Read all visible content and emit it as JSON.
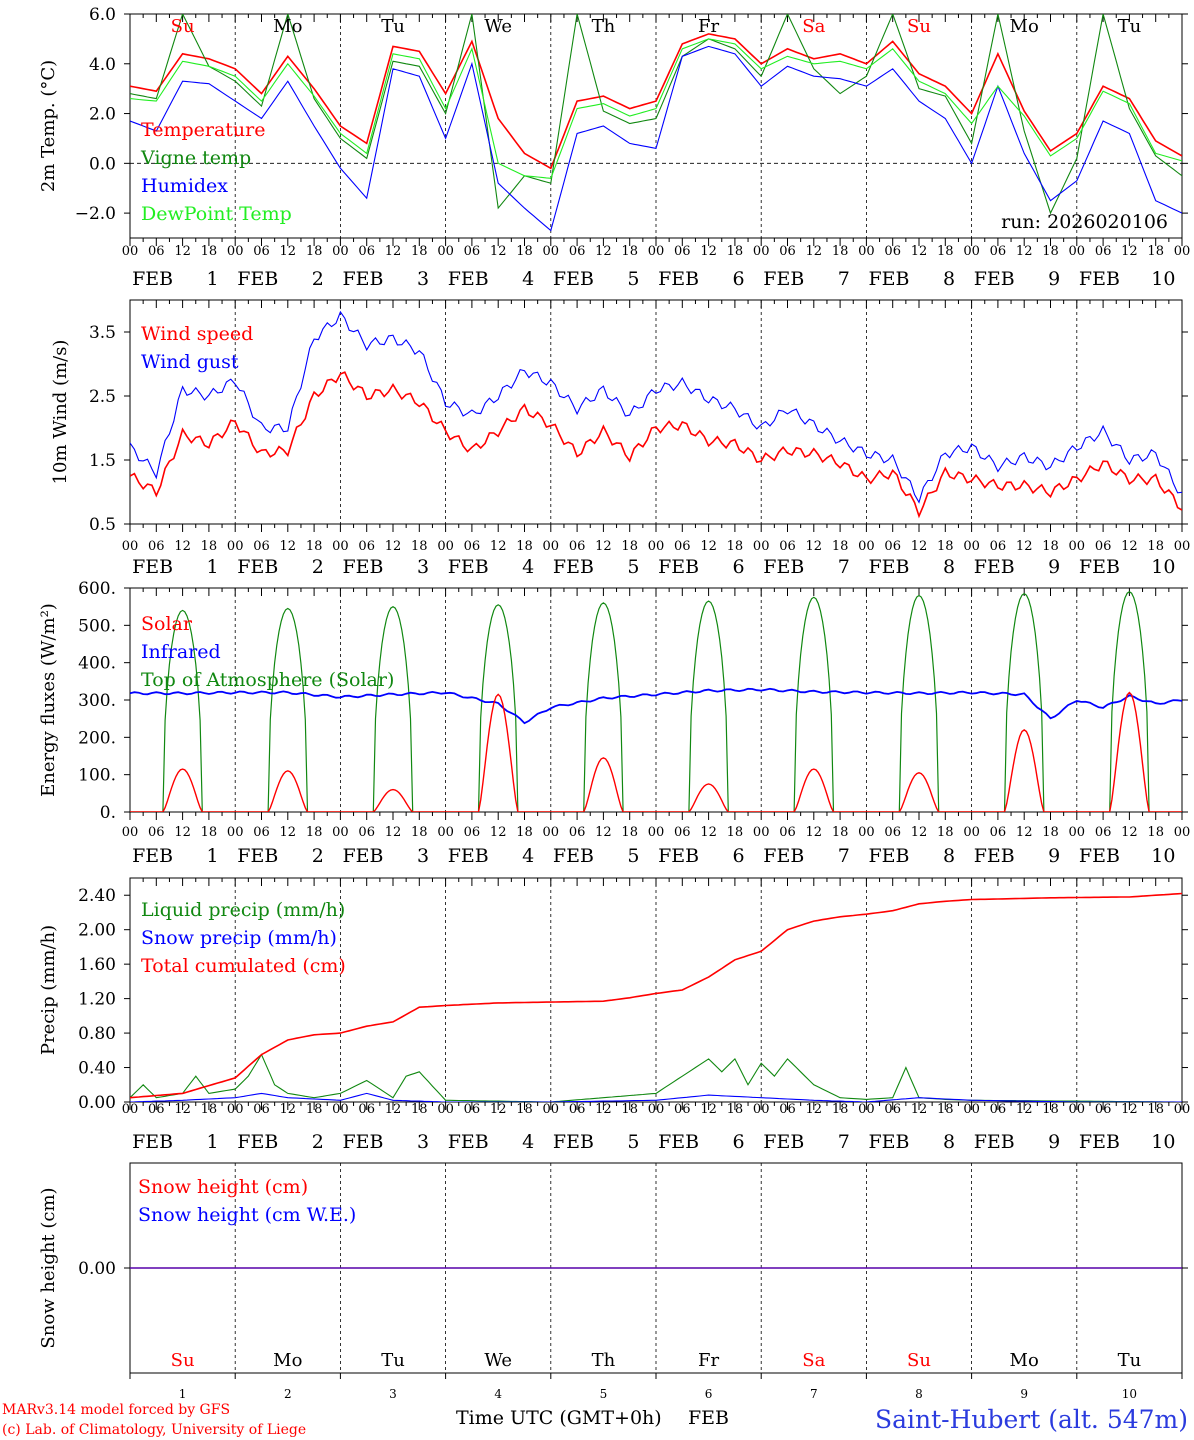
{
  "footer": {
    "model_line": "MARv3.14 model forced by GFS",
    "copyright_line": "(c) Lab. of Climatology, University of Liege",
    "time_label": "Time UTC (GMT+0h)",
    "month_label": "FEB",
    "station": "Saint-Hubert (alt. 547m)"
  },
  "run_label": "run: 2026020106",
  "days": [
    {
      "date": "1",
      "abbr": "Su",
      "weekend": true
    },
    {
      "date": "2",
      "abbr": "Mo",
      "weekend": false
    },
    {
      "date": "3",
      "abbr": "Tu",
      "weekend": false
    },
    {
      "date": "4",
      "abbr": "We",
      "weekend": false
    },
    {
      "date": "5",
      "abbr": "Th",
      "weekend": false
    },
    {
      "date": "6",
      "abbr": "Fr",
      "weekend": false
    },
    {
      "date": "7",
      "abbr": "Sa",
      "weekend": true
    },
    {
      "date": "8",
      "abbr": "Su",
      "weekend": true
    },
    {
      "date": "9",
      "abbr": "Mo",
      "weekend": false
    },
    {
      "date": "10",
      "abbr": "Tu",
      "weekend": false
    }
  ],
  "hour_ticks": [
    "00",
    "06",
    "12",
    "18"
  ],
  "colors": {
    "red": "#ff0000",
    "green": "#118811",
    "blue": "#0000ff",
    "lightgreen": "#22ee22",
    "weekend": "#ff0000"
  },
  "chart_data": [
    {
      "type": "line",
      "ylabel": "2m Temp. (°C)",
      "ylim": [
        -3,
        6
      ],
      "yticks": [
        -2,
        0,
        2,
        4,
        6
      ],
      "ytick_labels": [
        "−2.0",
        "0.0",
        "2.0",
        "4.0",
        "6.0"
      ],
      "zero_line": 0,
      "x_hours": [
        0,
        6,
        12,
        18,
        24,
        30,
        36,
        42,
        48,
        54,
        60,
        66,
        72,
        78,
        84,
        90,
        96,
        102,
        108,
        114,
        120,
        126,
        132,
        138,
        144,
        150,
        156,
        162,
        168,
        174,
        180,
        186,
        192,
        198,
        204,
        210,
        216,
        222,
        228,
        234,
        240
      ],
      "series": [
        {
          "name": "Temperature",
          "color": "red",
          "values": [
            3.1,
            2.9,
            4.4,
            4.2,
            3.8,
            2.8,
            4.3,
            3.0,
            1.5,
            0.8,
            4.7,
            4.5,
            2.8,
            4.9,
            1.8,
            0.4,
            -0.2,
            2.5,
            2.7,
            2.2,
            2.5,
            4.8,
            5.2,
            5.0,
            4.0,
            4.6,
            4.2,
            4.4,
            4.0,
            4.9,
            3.6,
            3.1,
            2.0,
            4.4,
            2.1,
            0.5,
            1.2,
            3.1,
            2.6,
            0.9,
            0.3
          ]
        },
        {
          "name": "Vigne temp",
          "color": "green",
          "values": [
            2.8,
            2.6,
            6.0,
            3.9,
            3.3,
            2.3,
            6.0,
            2.6,
            1.0,
            0.2,
            4.1,
            3.9,
            2.0,
            6.0,
            -1.8,
            -0.5,
            -0.8,
            6.0,
            2.1,
            1.6,
            1.8,
            4.3,
            5.0,
            4.6,
            3.5,
            6.0,
            3.8,
            2.8,
            3.5,
            6.0,
            3.0,
            2.7,
            0.8,
            6.0,
            1.3,
            -2.0,
            0.2,
            6.0,
            2.2,
            0.3,
            -0.5
          ]
        },
        {
          "name": "Humidex",
          "color": "blue",
          "values": [
            1.7,
            1.3,
            3.3,
            3.2,
            2.5,
            1.8,
            3.3,
            1.5,
            -0.2,
            -1.4,
            3.8,
            3.5,
            1.0,
            4.0,
            -0.8,
            -1.8,
            -2.7,
            1.2,
            1.5,
            0.8,
            0.6,
            4.3,
            4.7,
            4.4,
            3.1,
            3.9,
            3.5,
            3.4,
            3.1,
            3.8,
            2.5,
            1.8,
            0.0,
            3.1,
            0.4,
            -1.5,
            -0.7,
            1.7,
            1.2,
            -1.5,
            -2.0
          ]
        },
        {
          "name": "DewPoint Temp",
          "color": "lightgreen",
          "values": [
            2.6,
            2.5,
            4.1,
            3.9,
            3.5,
            2.5,
            4.0,
            2.7,
            1.2,
            0.4,
            4.4,
            4.2,
            2.2,
            4.6,
            0.0,
            -0.5,
            -0.6,
            2.2,
            2.4,
            1.9,
            2.2,
            4.6,
            5.0,
            4.8,
            3.8,
            4.3,
            4.0,
            4.1,
            3.8,
            4.6,
            3.3,
            2.8,
            1.6,
            3.1,
            1.9,
            0.3,
            1.0,
            2.9,
            2.4,
            0.4,
            0.1
          ]
        }
      ],
      "legend": [
        "Temperature",
        "Vigne temp",
        "Humidex",
        "DewPoint Temp"
      ]
    },
    {
      "type": "line",
      "ylabel": "10m Wind (m/s)",
      "ylim": [
        0.5,
        4.0
      ],
      "yticks": [
        0.5,
        1.5,
        2.5,
        3.5
      ],
      "ytick_labels": [
        "0.5",
        "1.5",
        "2.5",
        "3.5"
      ],
      "x_hours": [
        0,
        6,
        12,
        18,
        24,
        30,
        36,
        42,
        48,
        54,
        60,
        66,
        72,
        78,
        84,
        90,
        96,
        102,
        108,
        114,
        120,
        126,
        132,
        138,
        144,
        150,
        156,
        162,
        168,
        174,
        180,
        186,
        192,
        198,
        204,
        210,
        216,
        222,
        228,
        234,
        240
      ],
      "series": [
        {
          "name": "Wind speed",
          "color": "red",
          "values": [
            1.25,
            1.0,
            1.9,
            1.75,
            2.1,
            1.6,
            1.65,
            2.5,
            2.85,
            2.5,
            2.6,
            2.4,
            1.95,
            1.65,
            1.95,
            2.3,
            2.05,
            1.6,
            1.95,
            1.55,
            2.0,
            2.05,
            1.8,
            1.75,
            1.5,
            1.65,
            1.6,
            1.45,
            1.2,
            1.3,
            0.7,
            1.3,
            1.2,
            1.1,
            1.1,
            1.0,
            1.2,
            1.45,
            1.2,
            1.2,
            0.75
          ]
        },
        {
          "name": "Wind gust",
          "color": "blue",
          "values": [
            1.7,
            1.3,
            2.6,
            2.5,
            2.75,
            2.0,
            2.0,
            3.4,
            3.75,
            3.3,
            3.4,
            3.2,
            2.4,
            2.2,
            2.5,
            2.9,
            2.7,
            2.3,
            2.6,
            2.2,
            2.6,
            2.7,
            2.45,
            2.3,
            2.0,
            2.3,
            2.05,
            1.8,
            1.6,
            1.5,
            0.9,
            1.6,
            1.7,
            1.4,
            1.55,
            1.4,
            1.7,
            1.95,
            1.5,
            1.6,
            0.95
          ]
        }
      ],
      "legend": [
        "Wind speed",
        "Wind gust"
      ]
    },
    {
      "type": "line",
      "ylabel": "Energy fluxes (W/m²)",
      "ylim": [
        0,
        600
      ],
      "yticks": [
        0,
        100,
        200,
        300,
        400,
        500,
        600
      ],
      "ytick_labels": [
        "0.",
        "100.",
        "200.",
        "300.",
        "400.",
        "500.",
        "600."
      ],
      "daily": {
        "solar_peak": [
          115,
          110,
          60,
          315,
          145,
          75,
          115,
          105,
          220,
          320
        ],
        "toa_peak": [
          540,
          545,
          550,
          555,
          560,
          565,
          575,
          580,
          585,
          590
        ],
        "sunrise_hour": 7.5,
        "sunset_hour": 16.5
      },
      "infrared": {
        "x_hours": [
          0,
          12,
          24,
          36,
          48,
          60,
          72,
          84,
          90,
          96,
          108,
          120,
          132,
          144,
          156,
          168,
          180,
          192,
          204,
          210,
          216,
          222,
          228,
          234,
          240
        ],
        "values": [
          318,
          318,
          320,
          320,
          308,
          315,
          320,
          290,
          240,
          280,
          305,
          315,
          325,
          328,
          322,
          320,
          318,
          320,
          315,
          250,
          300,
          280,
          310,
          290,
          300
        ]
      },
      "series": [
        {
          "name": "Solar",
          "color": "red"
        },
        {
          "name": "Infrared",
          "color": "blue"
        },
        {
          "name": "Top of Atmosphere (Solar)",
          "color": "green"
        }
      ],
      "legend": [
        "Solar",
        "Infrared",
        "Top of Atmosphere (Solar)"
      ]
    },
    {
      "type": "line",
      "ylabel": "Precip (mm/h)",
      "ylim": [
        0,
        2.6
      ],
      "yticks": [
        0,
        0.4,
        0.8,
        1.2,
        1.6,
        2.0,
        2.4
      ],
      "ytick_labels": [
        "0.00",
        "0.40",
        "0.80",
        "1.20",
        "1.60",
        "2.00",
        "2.40"
      ],
      "series": [
        {
          "name": "Liquid precip (mm/h)",
          "color": "green",
          "x_hours": [
            0,
            3,
            6,
            12,
            15,
            18,
            24,
            27,
            30,
            33,
            36,
            42,
            48,
            54,
            60,
            63,
            66,
            72,
            96,
            108,
            120,
            132,
            135,
            138,
            141,
            144,
            147,
            150,
            156,
            162,
            168,
            174,
            177,
            180,
            186,
            192,
            216,
            240
          ],
          "values": [
            0.05,
            0.2,
            0.05,
            0.1,
            0.3,
            0.1,
            0.15,
            0.3,
            0.55,
            0.2,
            0.1,
            0.05,
            0.1,
            0.25,
            0.05,
            0.3,
            0.35,
            0.02,
            0.0,
            0.05,
            0.1,
            0.5,
            0.35,
            0.5,
            0.2,
            0.45,
            0.3,
            0.5,
            0.2,
            0.05,
            0.03,
            0.05,
            0.4,
            0.05,
            0.03,
            0.02,
            0.01,
            0.0
          ]
        },
        {
          "name": "Snow precip (mm/h)",
          "color": "blue",
          "x_hours": [
            0,
            12,
            24,
            30,
            36,
            48,
            54,
            60,
            72,
            96,
            120,
            132,
            144,
            156,
            168,
            180,
            192,
            216,
            240
          ],
          "values": [
            0.0,
            0.02,
            0.05,
            0.1,
            0.05,
            0.02,
            0.1,
            0.02,
            0.0,
            0.0,
            0.02,
            0.08,
            0.05,
            0.02,
            0.0,
            0.05,
            0.02,
            0.0,
            0.0
          ]
        },
        {
          "name": "Total cumulated (cm)",
          "color": "red",
          "x_hours": [
            0,
            12,
            24,
            30,
            36,
            42,
            48,
            54,
            60,
            66,
            72,
            84,
            96,
            108,
            114,
            120,
            126,
            132,
            138,
            144,
            150,
            156,
            162,
            168,
            174,
            180,
            186,
            192,
            210,
            228,
            240
          ],
          "values": [
            0.05,
            0.1,
            0.28,
            0.55,
            0.72,
            0.78,
            0.8,
            0.88,
            0.93,
            1.1,
            1.12,
            1.15,
            1.16,
            1.17,
            1.21,
            1.26,
            1.3,
            1.45,
            1.65,
            1.75,
            2.0,
            2.1,
            2.15,
            2.18,
            2.22,
            2.3,
            2.33,
            2.35,
            2.37,
            2.38,
            2.42
          ]
        }
      ],
      "legend": [
        "Liquid precip (mm/h)",
        "Snow precip (mm/h)",
        "Total cumulated (cm)"
      ]
    },
    {
      "type": "line",
      "ylabel": "Snow height (cm)",
      "ylim": [
        -1,
        1
      ],
      "yticks": [
        0
      ],
      "ytick_labels": [
        "0.00"
      ],
      "series": [
        {
          "name": "Snow height (cm)",
          "color": "red",
          "x_hours": [
            0,
            240
          ],
          "values": [
            0,
            0
          ]
        },
        {
          "name": "Snow height (cm W.E.)",
          "color": "blue",
          "x_hours": [
            0,
            240
          ],
          "values": [
            0,
            0
          ]
        }
      ],
      "legend": [
        "Snow height (cm)",
        "Snow height (cm W.E.)"
      ]
    }
  ]
}
